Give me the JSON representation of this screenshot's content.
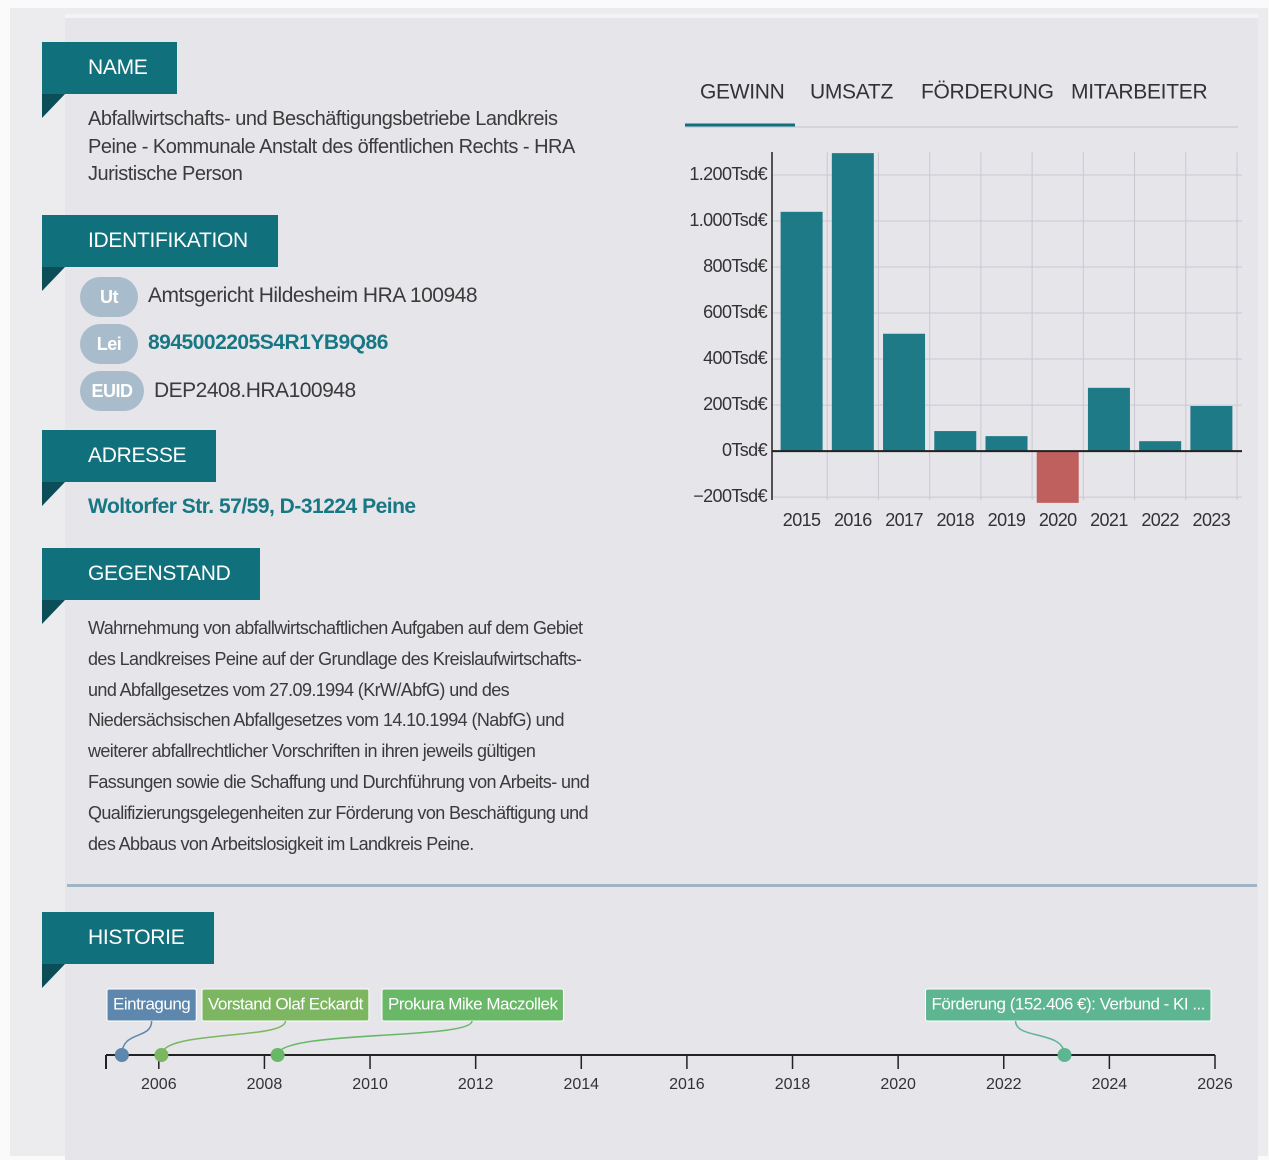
{
  "sections": {
    "name": {
      "heading": "NAME",
      "lines": [
        "Abfallwirtschafts- und Beschäftigungsbetriebe Landkreis",
        "Peine - Kommunale Anstalt des öffentlichen Rechts - HRA"
      ],
      "legal_form": "Juristische Person"
    },
    "identifikation": {
      "heading": "IDENTIFIKATION",
      "items": [
        {
          "badge": "Ut",
          "text": "Amtsgericht Hildesheim HRA 100948"
        },
        {
          "badge": "Lei",
          "text": "8945002205S4R1YB9Q86"
        },
        {
          "badge": "EUID",
          "text": "DEP2408.HRA100948"
        }
      ]
    },
    "adresse": {
      "heading": "ADRESSE",
      "text": "Woltorfer Str. 57/59, D-31224 Peine"
    },
    "gegenstand": {
      "heading": "GEGENSTAND",
      "lines": [
        "Wahrnehmung von abfallwirtschaftlichen Aufgaben auf dem Gebiet",
        "des Landkreises Peine auf der Grundlage des Kreislaufwirtschafts-",
        "und Abfallgesetzes vom 27.09.1994 (KrW/AbfG) und des",
        "Niedersächsischen Abfallgesetzes vom 14.10.1994 (NabfG) und",
        "weiterer abfallrechtlicher Vorschriften in ihren jeweils gültigen",
        "Fassungen sowie die Schaffung und Durchführung von Arbeits- und",
        "Qualifizierungsgelegenheiten zur Förderung von Beschäftigung und",
        "des Abbaus von Arbeitslosigkeit im Landkreis Peine."
      ]
    },
    "historie": {
      "heading": "HISTORIE"
    }
  },
  "chart_data": [
    {
      "type": "bar",
      "tabs": [
        "GEWINN",
        "UMSATZ",
        "FÖRDERUNG",
        "MITARBEITER"
      ],
      "active_tab": 0,
      "categories": [
        "2015",
        "2016",
        "2017",
        "2018",
        "2019",
        "2020",
        "2021",
        "2022",
        "2023"
      ],
      "values": [
        1040,
        1295,
        510,
        87,
        65,
        -225,
        275,
        43,
        196
      ],
      "color": "#1e7a86",
      "negative_color": "#c0605e",
      "ylim": [
        -230,
        1300
      ],
      "yticks": [
        {
          "value": -200,
          "label": "−200Tsd€"
        },
        {
          "value": 0,
          "label": "0Tsd€"
        },
        {
          "value": 200,
          "label": "200Tsd€"
        },
        {
          "value": 400,
          "label": "400Tsd€"
        },
        {
          "value": 600,
          "label": "600Tsd€"
        },
        {
          "value": 800,
          "label": "800Tsd€"
        },
        {
          "value": 1000,
          "label": "1.000Tsd€"
        },
        {
          "value": 1200,
          "label": "1.200Tsd€"
        }
      ],
      "grid": true
    },
    {
      "type": "timeline",
      "xlim": [
        2005,
        2026
      ],
      "xticks": [
        2006,
        2008,
        2010,
        2012,
        2014,
        2016,
        2018,
        2020,
        2022,
        2024,
        2026
      ],
      "events": [
        {
          "label": "Eintragung",
          "x": 2005.3,
          "color": "#5d87ad"
        },
        {
          "label": "Vorstand Olaf Eckardt",
          "x": 2006.05,
          "color": "#7cb661"
        },
        {
          "label": "Prokura Mike Maczollek",
          "x": 2008.25,
          "color": "#69b868"
        },
        {
          "label": "Förderung (152.406 €): Verbund - KI ...",
          "x": 2023.15,
          "color": "#5db592"
        }
      ]
    }
  ]
}
